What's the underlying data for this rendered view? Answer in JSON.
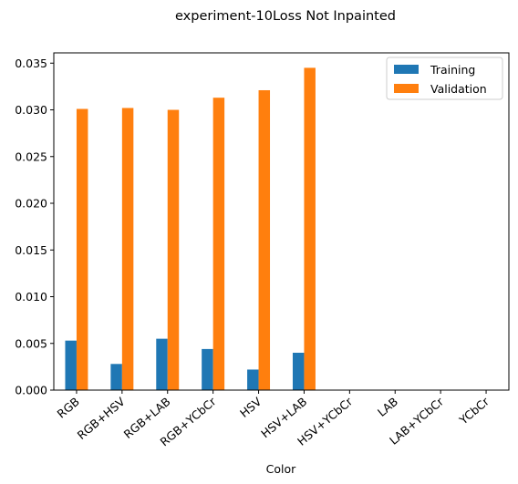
{
  "chart_data": {
    "type": "bar",
    "title": "experiment-10Loss Not Inpainted",
    "xlabel": "Color",
    "ylabel": "",
    "categories": [
      "RGB",
      "RGB+HSV",
      "RGB+LAB",
      "RGB+YCbCr",
      "HSV",
      "HSV+LAB",
      "HSV+YCbCr",
      "LAB",
      "LAB+YCbCr",
      "YCbCr"
    ],
    "series": [
      {
        "name": "Training",
        "color": "#1f77b4",
        "values": [
          0.0053,
          0.0028,
          0.0055,
          0.0044,
          0.0022,
          0.004,
          null,
          null,
          null,
          null
        ]
      },
      {
        "name": "Validation",
        "color": "#ff7f0e",
        "values": [
          0.0301,
          0.0302,
          0.03,
          0.0313,
          0.0321,
          0.0345,
          null,
          null,
          null,
          null
        ]
      }
    ],
    "ylim": [
      0,
      0.0361
    ],
    "yticks": [
      "0.000",
      "0.005",
      "0.010",
      "0.015",
      "0.020",
      "0.025",
      "0.030",
      "0.035"
    ],
    "legend_position": "top-right",
    "grid": false
  }
}
